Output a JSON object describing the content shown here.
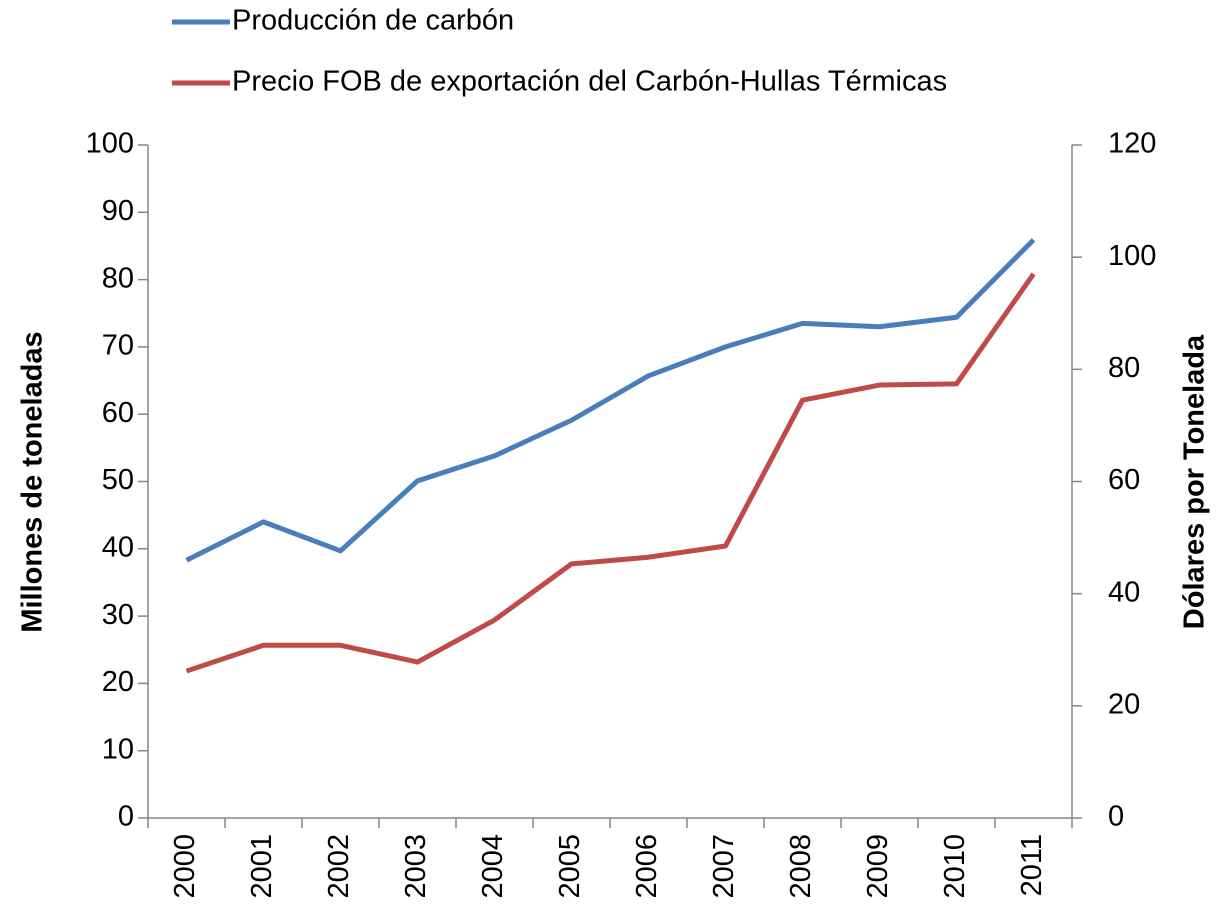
{
  "chart_data": {
    "type": "line",
    "categories": [
      "2000",
      "2001",
      "2002",
      "2003",
      "2004",
      "2005",
      "2006",
      "2007",
      "2008",
      "2009",
      "2010",
      "2011"
    ],
    "series": [
      {
        "name": "Producción de carbón",
        "color": "#4a7ebb",
        "values": [
          38.3,
          44.0,
          39.7,
          50.1,
          53.8,
          59.1,
          65.7,
          70.0,
          73.5,
          73.0,
          74.4,
          85.9
        ]
      },
      {
        "name": "Precio FOB de exportación del Carbón-Hullas Térmicas",
        "color": "#be4b48",
        "axis": "y2",
        "values": [
          26.2,
          30.8,
          30.8,
          27.8,
          35.3,
          45.3,
          46.5,
          48.5,
          74.5,
          77.2,
          77.4,
          97.0
        ]
      }
    ],
    "ylabel": "Millones de toneladas",
    "y2label": "Dólares por Tonelada",
    "ylim": [
      0,
      100
    ],
    "yticks": [
      0,
      10,
      20,
      30,
      40,
      50,
      60,
      70,
      80,
      90,
      100
    ],
    "y2lim": [
      0,
      120
    ],
    "y2ticks": [
      0,
      20,
      40,
      60,
      80,
      100,
      120
    ],
    "grid": false,
    "legend": "top"
  }
}
